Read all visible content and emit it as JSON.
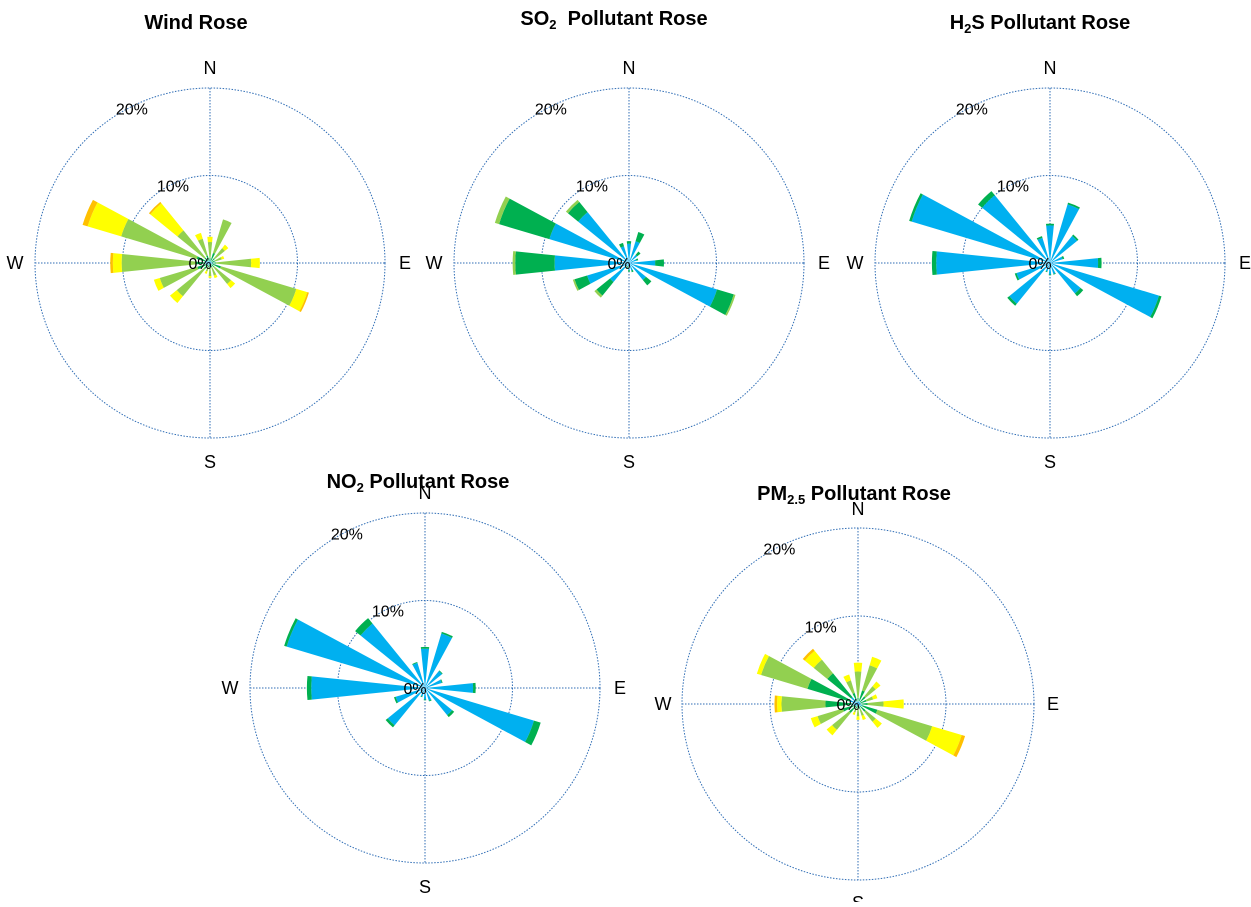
{
  "colors": {
    "blue": "#00B0F0",
    "dark_green": "#00B050",
    "light_green": "#92D050",
    "yellow": "#FFFF00",
    "orange": "#FFC000",
    "grid": "#2F6DB5"
  },
  "chart_data": [
    {
      "type": "wind-rose",
      "title_main": "Wind Rose",
      "title_sub": "",
      "title_rest": "",
      "directions": [
        "N",
        "NNE",
        "NE",
        "ENE",
        "E",
        "ESE",
        "SE",
        "SSE",
        "S",
        "SSW",
        "SW",
        "WSW",
        "W",
        "WNW",
        "NW",
        "NNW"
      ],
      "cardinals": [
        "N",
        "E",
        "S",
        "W"
      ],
      "radial_ticks": [
        "0%",
        "10%",
        "20%"
      ],
      "rmax": 20,
      "bands": [
        "blue",
        "dark_green",
        "light_green",
        "yellow",
        "orange"
      ],
      "petals": [
        [
          0.2,
          0.4,
          1.8,
          0.6,
          0
        ],
        [
          0.3,
          0.9,
          4.0,
          0,
          0
        ],
        [
          0.2,
          0.5,
          1.5,
          0.5,
          0
        ],
        [
          0.2,
          0.4,
          0.8,
          0.3,
          0
        ],
        [
          0.2,
          0.5,
          4.0,
          1.0,
          0
        ],
        [
          0.3,
          1.0,
          9.0,
          1.3,
          0.2
        ],
        [
          0.2,
          0.4,
          2.5,
          0.6,
          0
        ],
        [
          0.2,
          0.3,
          1.0,
          0.3,
          0
        ],
        [
          0.2,
          0.3,
          1.0,
          0.2,
          0
        ],
        [
          0.2,
          0.3,
          0.5,
          0.3,
          0
        ],
        [
          0.3,
          0.6,
          4.0,
          1.0,
          0
        ],
        [
          0.5,
          1.0,
          4.5,
          0.7,
          0
        ],
        [
          0.6,
          1.0,
          8.5,
          1.0,
          0.3
        ],
        [
          0.6,
          1.0,
          9.0,
          4.0,
          0.6
        ],
        [
          0.3,
          0.5,
          4.0,
          4.0,
          0.2
        ],
        [
          0.3,
          0.6,
          2.0,
          0.7,
          0
        ]
      ]
    },
    {
      "type": "wind-rose",
      "title_main": "SO",
      "title_sub": "2",
      "title_rest": "  Pollutant Rose",
      "directions": [
        "N",
        "NNE",
        "NE",
        "ENE",
        "E",
        "ESE",
        "SE",
        "SSE",
        "S",
        "SSW",
        "SW",
        "WSW",
        "W",
        "WNW",
        "NW",
        "NNW"
      ],
      "cardinals": [
        "N",
        "E",
        "S",
        "W"
      ],
      "radial_ticks": [
        "0%",
        "10%",
        "20%"
      ],
      "rmax": 20,
      "bands": [
        "blue",
        "dark_green",
        "light_green",
        "yellow",
        "orange"
      ],
      "petals": [
        [
          2.2,
          0.3,
          0,
          0,
          0
        ],
        [
          2.6,
          1.1,
          0,
          0,
          0
        ],
        [
          1.2,
          0.5,
          0,
          0,
          0
        ],
        [
          0.9,
          0.2,
          0,
          0,
          0
        ],
        [
          3.0,
          1.0,
          0,
          0,
          0
        ],
        [
          10.5,
          2.0,
          0.2,
          0,
          0
        ],
        [
          2.5,
          0.8,
          0,
          0,
          0
        ],
        [
          0.9,
          0.2,
          0,
          0,
          0
        ],
        [
          0.8,
          0.2,
          0,
          0,
          0
        ],
        [
          0.4,
          0.3,
          0,
          0,
          0
        ],
        [
          2.8,
          2.0,
          0.3,
          0,
          0
        ],
        [
          5.0,
          1.5,
          0.2,
          0,
          0
        ],
        [
          8.5,
          4.5,
          0.3,
          0,
          0
        ],
        [
          9.5,
          6.0,
          0.5,
          0,
          0
        ],
        [
          7.5,
          1.5,
          0.3,
          0,
          0
        ],
        [
          2.0,
          0.4,
          0,
          0,
          0
        ]
      ]
    },
    {
      "type": "wind-rose",
      "title_main": "H",
      "title_sub": "2",
      "title_rest": "S Pollutant Rose",
      "directions": [
        "N",
        "NNE",
        "NE",
        "ENE",
        "E",
        "ESE",
        "SE",
        "SSE",
        "S",
        "SSW",
        "SW",
        "WSW",
        "W",
        "WNW",
        "NW",
        "NNW"
      ],
      "cardinals": [
        "N",
        "E",
        "S",
        "W"
      ],
      "radial_ticks": [
        "0%",
        "10%",
        "20%"
      ],
      "rmax": 20,
      "bands": [
        "blue",
        "dark_green",
        "light_green",
        "yellow",
        "orange"
      ],
      "petals": [
        [
          4.3,
          0.2,
          0,
          0,
          0
        ],
        [
          7.0,
          0.2,
          0,
          0,
          0
        ],
        [
          4.0,
          0.2,
          0,
          0,
          0
        ],
        [
          1.5,
          0.2,
          0,
          0,
          0
        ],
        [
          5.5,
          0.4,
          0,
          0,
          0
        ],
        [
          13.0,
          0.3,
          0,
          0,
          0
        ],
        [
          4.5,
          0.4,
          0,
          0,
          0
        ],
        [
          1.3,
          0.1,
          0,
          0,
          0
        ],
        [
          1.3,
          0.1,
          0,
          0,
          0
        ],
        [
          1.0,
          0.1,
          0,
          0,
          0
        ],
        [
          6.0,
          0.3,
          0,
          0,
          0
        ],
        [
          4.0,
          0.2,
          0,
          0,
          0
        ],
        [
          13.0,
          0.5,
          0,
          0,
          0
        ],
        [
          16.5,
          0.3,
          0,
          0,
          0
        ],
        [
          10.0,
          0.6,
          0,
          0,
          0
        ],
        [
          3.0,
          0.2,
          0,
          0,
          0
        ]
      ]
    },
    {
      "type": "wind-rose",
      "title_main": "NO",
      "title_sub": "2",
      "title_rest": " Pollutant Rose",
      "directions": [
        "N",
        "NNE",
        "NE",
        "ENE",
        "E",
        "ESE",
        "SE",
        "SSE",
        "S",
        "SSW",
        "SW",
        "WSW",
        "W",
        "WNW",
        "NW",
        "NNW"
      ],
      "cardinals": [
        "N",
        "E",
        "S",
        "W"
      ],
      "radial_ticks": [
        "0%",
        "10%",
        "20%"
      ],
      "rmax": 20,
      "bands": [
        "blue",
        "dark_green",
        "light_green",
        "yellow",
        "orange"
      ],
      "petals": [
        [
          4.5,
          0.2,
          0,
          0,
          0
        ],
        [
          6.5,
          0.2,
          0,
          0,
          0
        ],
        [
          2.5,
          0.1,
          0,
          0,
          0
        ],
        [
          2.0,
          0.1,
          0,
          0,
          0
        ],
        [
          5.5,
          0.3,
          0,
          0,
          0
        ],
        [
          13.0,
          0.8,
          0,
          0,
          0
        ],
        [
          4.0,
          0.3,
          0,
          0,
          0
        ],
        [
          1.5,
          0.1,
          0,
          0,
          0
        ],
        [
          1.3,
          0.1,
          0,
          0,
          0
        ],
        [
          1.0,
          0.1,
          0,
          0,
          0
        ],
        [
          5.5,
          0.3,
          0,
          0,
          0
        ],
        [
          3.5,
          0.2,
          0,
          0,
          0
        ],
        [
          13.0,
          0.5,
          0,
          0,
          0
        ],
        [
          16.5,
          0.3,
          0,
          0,
          0
        ],
        [
          9.5,
          0.8,
          0,
          0,
          0
        ],
        [
          3.0,
          0.1,
          0,
          0,
          0
        ]
      ]
    },
    {
      "type": "wind-rose",
      "title_main": "PM",
      "title_sub": "2.5",
      "title_rest": " Pollutant Rose",
      "directions": [
        "N",
        "NNE",
        "NE",
        "ENE",
        "E",
        "ESE",
        "SE",
        "SSE",
        "S",
        "SSW",
        "SW",
        "WSW",
        "W",
        "WNW",
        "NW",
        "NNW"
      ],
      "cardinals": [
        "N",
        "E",
        "S",
        "W"
      ],
      "radial_ticks": [
        "0%",
        "10%",
        "20%"
      ],
      "rmax": 20,
      "bands": [
        "blue",
        "dark_green",
        "light_green",
        "yellow",
        "orange"
      ],
      "petals": [
        [
          0.3,
          0.4,
          3.0,
          1.0,
          0
        ],
        [
          0.4,
          1.2,
          3.0,
          1.0,
          0
        ],
        [
          0.3,
          0.8,
          1.5,
          0.7,
          0
        ],
        [
          0.3,
          0.7,
          0.8,
          0.5,
          0
        ],
        [
          0.3,
          0.8,
          1.8,
          2.3,
          0
        ],
        [
          0.5,
          1.8,
          6.5,
          3.5,
          0.4
        ],
        [
          0.3,
          0.8,
          1.5,
          0.9,
          0
        ],
        [
          0.2,
          0.4,
          0.8,
          0.5,
          0
        ],
        [
          0.2,
          0.4,
          0.8,
          0.4,
          0
        ],
        [
          0.2,
          0.3,
          0.5,
          0.3,
          0
        ],
        [
          0.3,
          1.0,
          2.5,
          0.8,
          0
        ],
        [
          0.5,
          1.3,
          3.0,
          0.8,
          0
        ],
        [
          0.7,
          3.0,
          5.0,
          0.5,
          0.3
        ],
        [
          1.0,
          5.0,
          5.5,
          0.5,
          0
        ],
        [
          1.0,
          3.5,
          2.0,
          1.3,
          0.3
        ],
        [
          0.3,
          1.0,
          1.5,
          0.7,
          0
        ]
      ]
    }
  ]
}
